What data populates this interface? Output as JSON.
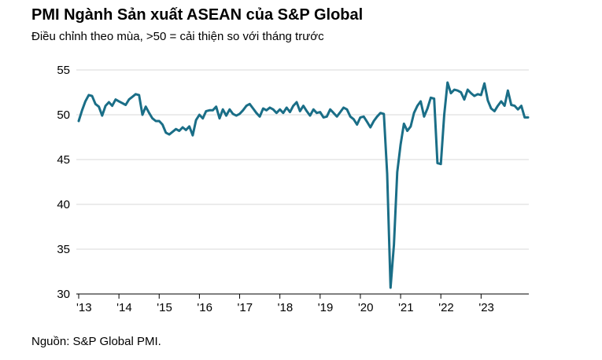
{
  "chart_data": {
    "type": "line",
    "title": "PMI Ngành Sản xuất ASEAN của S&P Global",
    "subtitle": "Điều chỉnh theo mùa, >50 = cải thiện so với tháng trước",
    "source": "Nguồn: S&P Global PMI.",
    "ylim": [
      30,
      55
    ],
    "yticks": [
      "55",
      "50",
      "45",
      "40",
      "35",
      "30"
    ],
    "ytick_values": [
      55,
      50,
      45,
      40,
      35,
      30
    ],
    "xtick_labels": [
      "'13",
      "'14",
      "'15",
      "'16",
      "'17",
      "'18",
      "'19",
      "'20",
      "'21",
      "'22",
      "'23"
    ],
    "x_start": "2013-01",
    "x_end": "2023-10",
    "grid": "horizontal",
    "line_color": "#1a6e87",
    "series": [
      {
        "values": [
          49.3,
          50.5,
          51.5,
          52.2,
          52.1,
          51.2,
          50.9,
          49.9,
          51.0,
          51.4,
          51.0,
          51.7,
          51.5,
          51.3,
          51.1,
          51.7,
          52.0,
          52.3,
          52.2,
          50.0,
          50.9,
          50.2,
          49.6,
          49.3,
          49.3,
          48.9,
          48.0,
          47.8,
          48.1,
          48.4,
          48.2,
          48.6,
          48.3,
          48.7,
          47.7,
          49.4,
          50.0,
          49.6,
          50.4,
          50.5,
          50.5,
          50.9,
          49.6,
          50.6,
          49.9,
          50.6,
          50.1,
          49.9,
          50.1,
          50.5,
          51.0,
          51.2,
          50.7,
          50.2,
          49.8,
          50.7,
          50.5,
          50.8,
          50.6,
          50.2,
          50.6,
          50.2,
          50.8,
          50.3,
          51.0,
          51.4,
          50.4,
          51.0,
          50.4,
          49.9,
          50.6,
          50.2,
          50.3,
          49.7,
          49.8,
          50.6,
          50.2,
          49.8,
          50.3,
          50.8,
          50.6,
          49.8,
          49.5,
          48.9,
          49.7,
          49.8,
          49.2,
          48.6,
          49.3,
          49.8,
          50.2,
          50.1,
          43.4,
          30.7,
          35.5,
          43.6,
          46.7,
          49.0,
          48.2,
          48.7,
          50.2,
          51.0,
          51.5,
          49.8,
          50.7,
          51.9,
          51.8,
          44.6,
          44.5,
          50.0,
          53.6,
          52.4,
          52.8,
          52.7,
          52.5,
          51.7,
          52.8,
          52.4,
          52.1,
          52.3,
          52.2,
          53.5,
          51.6,
          50.7,
          50.4,
          51.0,
          51.5,
          51.0,
          52.7,
          51.1,
          51.0,
          50.6,
          51.0,
          49.7,
          49.7
        ]
      }
    ]
  }
}
